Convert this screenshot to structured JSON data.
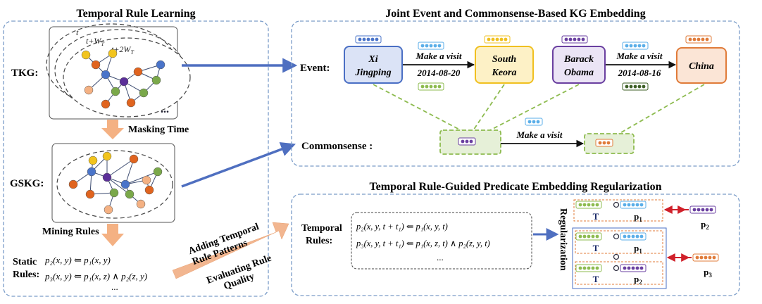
{
  "left_panel": {
    "title": "Temporal Rule Learning",
    "tkg_label": "TKG:",
    "gskg_label": "GSKG:",
    "time_t": "t",
    "time_t1": "t+W",
    "time_t2": "t+2W",
    "time_sub": "T",
    "ellipsis": "...",
    "masking_time": "Masking Time",
    "mining_rules": "Mining Rules",
    "static_rules_line1": "Static",
    "static_rules_line2": "Rules:",
    "static_rule_1": "p₂(x, y) ⇐ p₁(x, y)",
    "static_rule_2": "p₃(x, y) ⇐ p₁(x, z) ∧ p₂(z, y)",
    "static_more": "..."
  },
  "middle_arrow": {
    "line1": "Adding Temporal",
    "line2": "Rule Patterns",
    "line3": "Evaluating Rule",
    "line4": "Quality"
  },
  "top_right_panel": {
    "title": "Joint Event and Commonsense-Based KG Embedding",
    "event_label": "Event:",
    "commonsense_label": "Commonsense :",
    "entities": [
      {
        "line1": "Xi",
        "line2": "Jingping"
      },
      {
        "line1": "South",
        "line2": "Keora"
      },
      {
        "line1": "Barack",
        "line2": "Obama"
      },
      {
        "line1": "China",
        "line2": ""
      }
    ],
    "relation_1": "Make a visit",
    "date_1": "2014-08-20",
    "relation_2": "Make a visit",
    "date_2": "2014-08-16",
    "commonsense_relation": "Make a visit"
  },
  "bottom_right_panel": {
    "title": "Temporal Rule-Guided Predicate Embedding Regularization",
    "temporal_rules_line1": "Temporal",
    "temporal_rules_line2": "Rules:",
    "temporal_rule_1": "p₂(x, y, t + t₁) ⇐ p₁(x, y, t)",
    "temporal_rule_2": "p₃(x, y, t + t₁) ⇐ p₁(x, z, t) ∧ p₂(z, y, t)",
    "temporal_more": "...",
    "regularization": "Regularization",
    "T_label": "T",
    "p1_label": "p",
    "p2_label": "p",
    "sub_1": "1",
    "sub_2": "2",
    "sub_3": "3"
  },
  "colors": {
    "panel_border": "#7a9cc8",
    "arrow_blue": "#4f6fc0",
    "arrow_orange": "#e8b08c",
    "xi_fill": "#dbe3f6",
    "xi_stroke": "#4a6fc4",
    "sk_fill": "#fdf1c6",
    "sk_stroke": "#f0c020",
    "ob_fill": "#ebe4f5",
    "ob_stroke": "#6a3fa0",
    "cn_fill": "#fbe5d6",
    "cn_stroke": "#e07b39",
    "green_dash": "#8dbb4f",
    "green_fill": "#e6f0d8",
    "emb_blue": "#4a74c9",
    "emb_yellow": "#f0c020",
    "emb_purple": "#6a3fa0",
    "emb_orange": "#e07b39",
    "emb_lightblue": "#5aaee8",
    "emb_green": "#8dbb4f",
    "emb_darkgreen": "#3d5f26",
    "node_blue": "#4a74c9",
    "node_orange": "#e0641f",
    "node_purple": "#5b2f99",
    "node_yellow": "#f2c41d",
    "node_green": "#7aa84a",
    "node_peach": "#f4b183"
  }
}
